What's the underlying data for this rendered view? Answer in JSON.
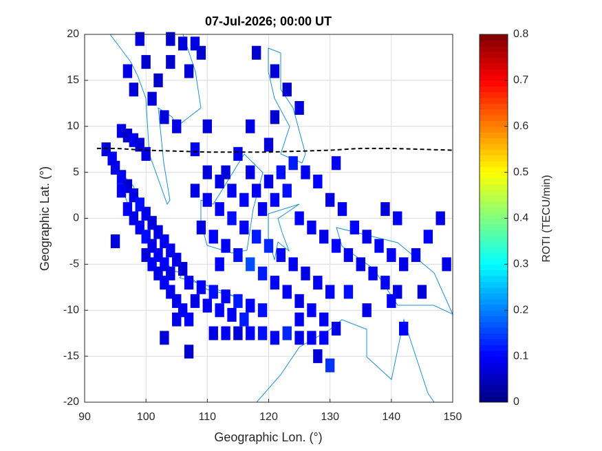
{
  "chart_data": {
    "type": "heatmap",
    "title": "07-Jul-2026; 00:00 UT",
    "x_label": "Geographic Lon. (°)",
    "y_label": "Geographic Lat. (°)",
    "xlim": [
      90,
      150
    ],
    "ylim": [
      -20,
      20
    ],
    "xticks": [
      90,
      100,
      110,
      120,
      130,
      140,
      150
    ],
    "yticks": [
      -20,
      -15,
      -10,
      -5,
      0,
      5,
      10,
      15,
      20
    ],
    "grid": true,
    "x": [
      93.5,
      94.5,
      95,
      96,
      97,
      98,
      99,
      100,
      101,
      102,
      103,
      104,
      105,
      106,
      96,
      97,
      98,
      99,
      100,
      101,
      102,
      106,
      108,
      110,
      104,
      103,
      96,
      97,
      98,
      99,
      100,
      101,
      102,
      103,
      104,
      100,
      101,
      102,
      103,
      104,
      105,
      106,
      107,
      105,
      103,
      107,
      95,
      107,
      109,
      111,
      113,
      115,
      117,
      119,
      108,
      110,
      112,
      114,
      116,
      111,
      113,
      115,
      117,
      119,
      121,
      123,
      125,
      127,
      129,
      128,
      130,
      125,
      108,
      110,
      112,
      114,
      116,
      118,
      120,
      122,
      124,
      126,
      128,
      130,
      109,
      111,
      113,
      115,
      117,
      119,
      121,
      123,
      125,
      127,
      129,
      131,
      110,
      112,
      114,
      116,
      118,
      120,
      122,
      124,
      126,
      128,
      130,
      132,
      134,
      136,
      138,
      140,
      142,
      144,
      146,
      148,
      139,
      141,
      125,
      127,
      129,
      131,
      133,
      135,
      137,
      139,
      141,
      119,
      121,
      123,
      117,
      115,
      113,
      118,
      121,
      123,
      125,
      121,
      117,
      120,
      108,
      105,
      112,
      131,
      133,
      136,
      140,
      142,
      149,
      145,
      104,
      99,
      97,
      100,
      98,
      107,
      109
    ],
    "y": [
      7.5,
      6.5,
      5.5,
      4.5,
      3.5,
      2.5,
      1.5,
      0.5,
      -0.5,
      -1.5,
      -2.5,
      -3.5,
      -4.5,
      -5.5,
      9.5,
      9,
      8.5,
      8,
      7,
      13,
      15,
      19,
      19,
      10,
      17,
      11,
      3,
      1,
      0,
      -1,
      -2,
      -3,
      -4,
      -5,
      -6,
      -4,
      -5,
      -6,
      -7,
      -8,
      -9,
      -10,
      -11,
      -11,
      -13,
      -14.5,
      -2.5,
      -7,
      -7.5,
      -8,
      -8.5,
      -9,
      -9.5,
      -10,
      -9,
      -9.5,
      -10,
      -10.5,
      -11,
      -12.5,
      -12.5,
      -12.5,
      -12.5,
      -12.5,
      -13,
      -12.5,
      -13,
      -13,
      -13,
      -15,
      -16,
      -11,
      3,
      2,
      1,
      0,
      -1,
      -2,
      -3,
      -4,
      -5,
      -6,
      -7,
      -8,
      -1,
      -2,
      -3,
      -4,
      -5,
      -6,
      -7,
      -8,
      -9,
      -10,
      -11,
      -12,
      5,
      4,
      3,
      2,
      3,
      4,
      5,
      6,
      5,
      4,
      2,
      1,
      -1,
      -2,
      -3,
      -4,
      -5,
      -4,
      -2,
      0,
      1,
      0,
      0,
      -1,
      -2,
      -3,
      -4,
      -5,
      -6,
      -7,
      -8,
      1,
      2,
      3,
      5,
      7,
      5,
      18,
      16,
      14,
      12,
      11,
      10,
      8,
      7.5,
      10,
      -5,
      6,
      -8,
      -10,
      -9,
      -12,
      -5,
      -8,
      19.5,
      19.5,
      16,
      17,
      14,
      16,
      18
    ],
    "values": [
      0.07,
      0.09,
      0.08,
      0.1,
      0.06,
      0.08,
      0.11,
      0.09,
      0.07,
      0.08,
      0.09,
      0.1,
      0.08,
      0.07,
      0.08,
      0.06,
      0.09,
      0.07,
      0.08,
      0.07,
      0.06,
      0.07,
      0.08,
      0.07,
      0.06,
      0.07,
      0.09,
      0.1,
      0.08,
      0.09,
      0.11,
      0.08,
      0.09,
      0.1,
      0.08,
      0.07,
      0.09,
      0.08,
      0.1,
      0.09,
      0.08,
      0.09,
      0.1,
      0.08,
      0.07,
      0.06,
      0.07,
      0.09,
      0.1,
      0.11,
      0.09,
      0.12,
      0.1,
      0.11,
      0.08,
      0.09,
      0.1,
      0.09,
      0.12,
      0.08,
      0.09,
      0.07,
      0.1,
      0.11,
      0.09,
      0.13,
      0.08,
      0.09,
      0.1,
      0.07,
      0.14,
      0.09,
      0.08,
      0.09,
      0.1,
      0.11,
      0.1,
      0.12,
      0.13,
      0.1,
      0.09,
      0.08,
      0.09,
      0.1,
      0.08,
      0.1,
      0.09,
      0.11,
      0.16,
      0.12,
      0.1,
      0.09,
      0.08,
      0.1,
      0.09,
      0.08,
      0.07,
      0.08,
      0.09,
      0.1,
      0.09,
      0.08,
      0.11,
      0.12,
      0.09,
      0.1,
      0.08,
      0.09,
      0.1,
      0.08,
      0.09,
      0.1,
      0.08,
      0.09,
      0.1,
      0.08,
      0.07,
      0.09,
      0.1,
      0.09,
      0.08,
      0.1,
      0.09,
      0.08,
      0.09,
      0.1,
      0.08,
      0.09,
      0.1,
      0.11,
      0.08,
      0.09,
      0.07,
      0.06,
      0.07,
      0.06,
      0.07,
      0.06,
      0.08,
      0.07,
      0.09,
      0.08,
      0.1,
      0.09,
      0.11,
      0.08,
      0.09,
      0.1,
      0.08,
      0.07,
      0.06,
      0.07,
      0.08,
      0.06,
      0.07,
      0.07,
      0.06
    ],
    "series": [
      {
        "color": "#000000",
        "dashed": true,
        "x": [
          92,
          95,
          100,
          105,
          110,
          115,
          120,
          125,
          130,
          135,
          140,
          145,
          150
        ],
        "values": [
          7.6,
          7.6,
          7.4,
          7.3,
          7.2,
          7.2,
          7.2,
          7.3,
          7.4,
          7.6,
          7.6,
          7.5,
          7.4
        ]
      }
    ],
    "colorbar": {
      "label": "ROTI (TECU/min)",
      "colormap": "jet",
      "lim": [
        0,
        0.8
      ],
      "ticks": [
        0,
        0.1,
        0.2,
        0.3,
        0.4,
        0.5,
        0.6,
        0.7,
        0.8
      ]
    }
  }
}
